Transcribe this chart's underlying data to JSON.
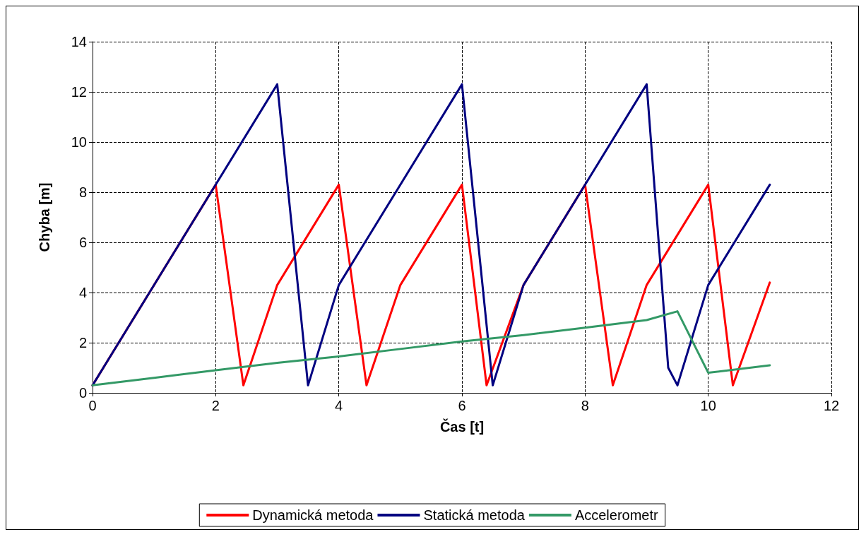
{
  "chart_data": {
    "type": "line",
    "xlabel": "Čas [t]",
    "ylabel": "Chyba [m]",
    "xlim": [
      0,
      12
    ],
    "xticks": [
      0,
      2,
      4,
      6,
      8,
      10,
      12
    ],
    "ylim": [
      0,
      14
    ],
    "yticks": [
      0,
      2,
      4,
      6,
      8,
      10,
      12,
      14
    ],
    "grid": true,
    "legend": "bottom",
    "marker": "none",
    "line_style": "solid",
    "series": [
      {
        "name": "Dynamická metoda",
        "color": "#ff0000",
        "x": [
          0,
          2,
          2.45,
          3,
          4,
          4.45,
          5,
          6,
          6.4,
          7,
          8,
          8.45,
          9,
          10,
          10.4,
          11
        ],
        "values": [
          0.3,
          8.3,
          0.3,
          4.3,
          8.3,
          0.3,
          4.3,
          8.3,
          0.3,
          4.3,
          8.3,
          0.3,
          4.3,
          8.3,
          0.3,
          4.4
        ]
      },
      {
        "name": "Statická metoda",
        "color": "#000080",
        "x": [
          0,
          3,
          3.5,
          4,
          6,
          6.5,
          7,
          9,
          9.35,
          9.5,
          10,
          11
        ],
        "values": [
          0.3,
          12.3,
          0.3,
          4.3,
          12.3,
          0.3,
          4.3,
          12.3,
          1.0,
          0.3,
          4.3,
          8.3
        ]
      },
      {
        "name": "Accelerometr",
        "color": "#339966",
        "x": [
          0,
          1,
          2,
          3,
          4,
          5,
          6,
          7,
          8,
          9,
          9.5,
          10,
          11
        ],
        "values": [
          0.3,
          0.6,
          0.9,
          1.2,
          1.45,
          1.75,
          2.05,
          2.3,
          2.6,
          2.9,
          3.25,
          0.8,
          1.1
        ]
      }
    ]
  }
}
